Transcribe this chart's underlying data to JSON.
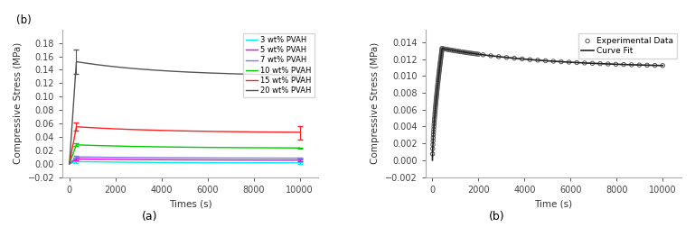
{
  "chart_a": {
    "label": "(b)",
    "xlabel": "Times (s)",
    "ylabel": "Compressive Stress (MPa)",
    "xlim": [
      -300,
      10800
    ],
    "ylim": [
      -0.02,
      0.2
    ],
    "yticks": [
      -0.02,
      0.0,
      0.02,
      0.04,
      0.06,
      0.08,
      0.1,
      0.12,
      0.14,
      0.16,
      0.18
    ],
    "xticks": [
      0,
      2000,
      4000,
      6000,
      8000,
      10000
    ],
    "caption": "(a)",
    "series": [
      {
        "label": "3 wt% PVAH",
        "color": "#00eeee",
        "peak_val": 0.003,
        "eq_val": 0.001,
        "err_peak": 0.0015,
        "err_eq": 0.0008
      },
      {
        "label": "5 wt% PVAH",
        "color": "#ee00ee",
        "peak_val": 0.007,
        "eq_val": 0.005,
        "err_peak": 0.0015,
        "err_eq": 0.001
      },
      {
        "label": "7 wt% PVAH",
        "color": "#7777ee",
        "peak_val": 0.01,
        "eq_val": 0.008,
        "err_peak": 0.0015,
        "err_eq": 0.001
      },
      {
        "label": "10 wt% PVAH",
        "color": "#00cc00",
        "peak_val": 0.028,
        "eq_val": 0.023,
        "err_peak": 0.002,
        "err_eq": 0.001
      },
      {
        "label": "15 wt% PVAH",
        "color": "#ff2222",
        "peak_val": 0.055,
        "eq_val": 0.046,
        "err_peak": 0.006,
        "err_eq": 0.01
      },
      {
        "label": "20 wt% PVAH",
        "color": "#555555",
        "peak_val": 0.152,
        "eq_val": 0.13,
        "err_peak": 0.018,
        "err_eq": 0.007
      }
    ],
    "decay_tau": 4000
  },
  "chart_b": {
    "xlabel": "Time (s)",
    "ylabel": "Compressive Stress (MPa)",
    "xlim": [
      -300,
      10800
    ],
    "ylim": [
      -0.002,
      0.0155
    ],
    "yticks": [
      -0.002,
      0.0,
      0.002,
      0.004,
      0.006,
      0.008,
      0.01,
      0.012,
      0.014
    ],
    "xticks": [
      0,
      2000,
      4000,
      6000,
      8000,
      10000
    ],
    "caption": "(b)",
    "curve_fit_color": "#222222",
    "exp_data_color": "#555555",
    "peak_time": 420,
    "peak_val": 0.01325,
    "eq_val": 0.01095,
    "decay_tau": 4500
  }
}
